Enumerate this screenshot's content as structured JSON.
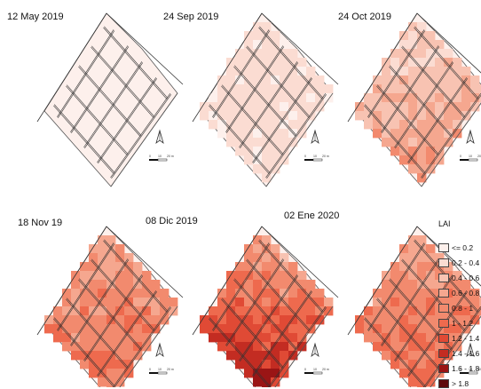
{
  "panels": [
    {
      "title": "12 May 2019",
      "date_index": 0
    },
    {
      "title": "24 Sep 2019",
      "date_index": 1
    },
    {
      "title": "24 Oct 2019",
      "date_index": 2
    },
    {
      "title": "18 Nov 19",
      "date_index": 3
    },
    {
      "title": "08 Dic 2019",
      "date_index": 4
    },
    {
      "title": "02 Ene 2020",
      "date_index": 5
    }
  ],
  "legend": {
    "title": "LAI",
    "classes": [
      {
        "label": "<= 0.2",
        "color": "#fdf0ec"
      },
      {
        "label": "0.2 - 0.4",
        "color": "#fbdcd2"
      },
      {
        "label": "0.4 - 0.6",
        "color": "#f8c3b2"
      },
      {
        "label": "0.6 - 0.8",
        "color": "#f5a78f"
      },
      {
        "label": "0.8 - 1",
        "color": "#f28a6e"
      },
      {
        "label": "1 - 1.2",
        "color": "#ee6a4e"
      },
      {
        "label": "1.2 - 1.4",
        "color": "#e04a35"
      },
      {
        "label": "1.4 - 1.6",
        "color": "#c32c22"
      },
      {
        "label": "1.6 - 1.8",
        "color": "#9a1515"
      },
      {
        "label": "> 1.8",
        "color": "#5e0a0c"
      }
    ]
  },
  "scale_bar": {
    "labels": [
      "0",
      "10",
      "20 m"
    ]
  },
  "north_arrow": {
    "icon": "north-arrow-icon"
  }
}
